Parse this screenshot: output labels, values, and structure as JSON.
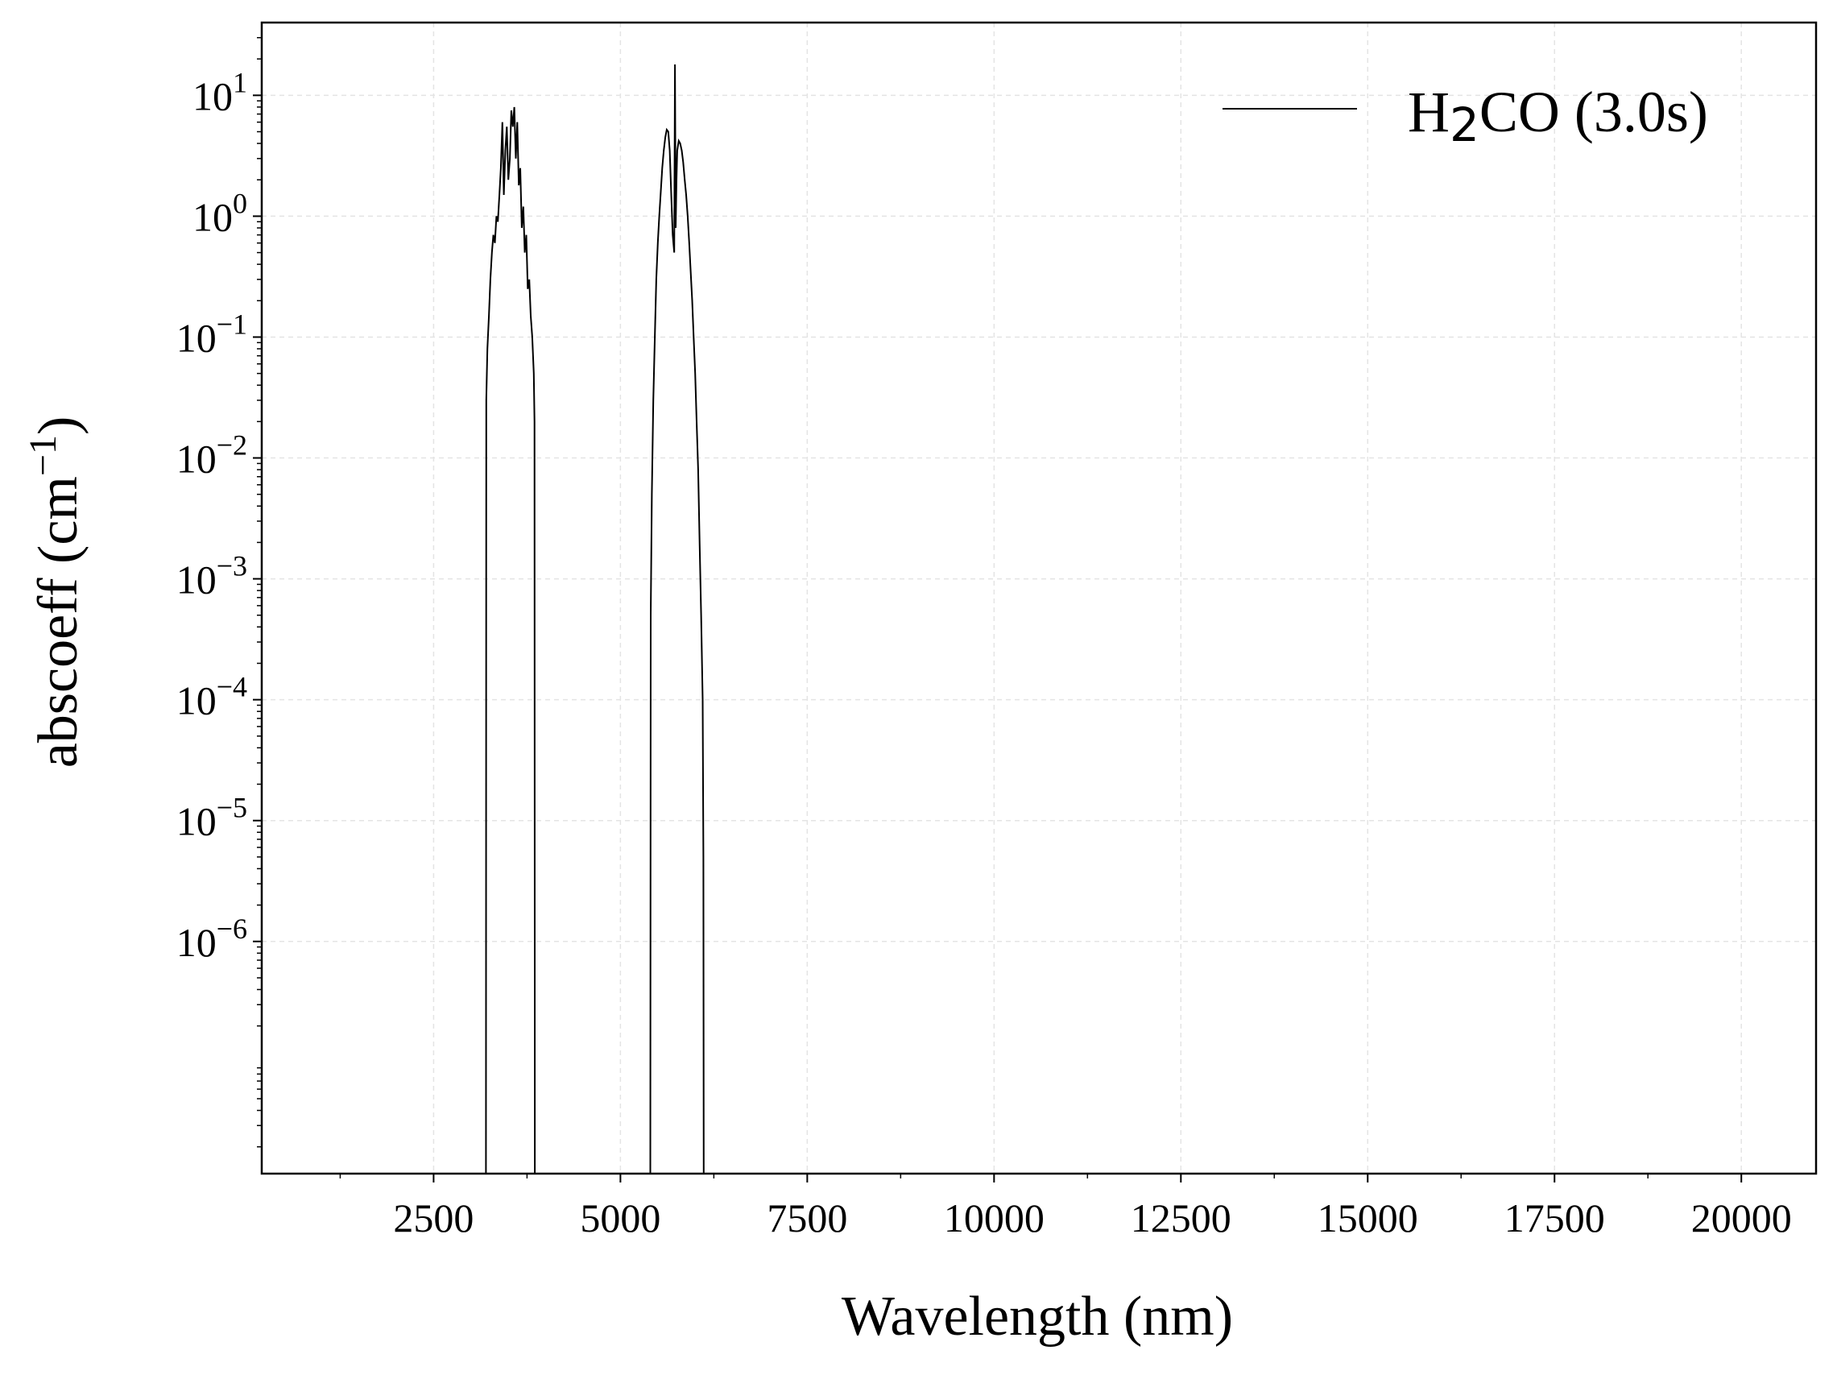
{
  "chart_data": {
    "type": "line",
    "title": "",
    "xlabel": "Wavelength (nm)",
    "ylabel": "abscoeff (cm",
    "ylabel_sup": "−1",
    "ylabel_close": ")",
    "xscale": "linear",
    "yscale": "log",
    "xlim": [
      200,
      21000
    ],
    "ylim": [
      1.2e-08,
      40
    ],
    "grid": true,
    "legend_position": "upper-right",
    "x_ticks": [
      2500,
      5000,
      7500,
      10000,
      12500,
      15000,
      17500,
      20000
    ],
    "x_tick_labels": [
      "2500",
      "5000",
      "7500",
      "10000",
      "12500",
      "15000",
      "17500",
      "20000"
    ],
    "y_ticks": [
      1e-06,
      1e-05,
      0.0001,
      0.001,
      0.01,
      0.1,
      1,
      10
    ],
    "y_tick_labels": [
      {
        "base": "10",
        "exp": "−6"
      },
      {
        "base": "10",
        "exp": "−5"
      },
      {
        "base": "10",
        "exp": "−4"
      },
      {
        "base": "10",
        "exp": "−3"
      },
      {
        "base": "10",
        "exp": "−2"
      },
      {
        "base": "10",
        "exp": "−1"
      },
      {
        "base": "10",
        "exp": "0"
      },
      {
        "base": "10",
        "exp": "1"
      }
    ],
    "series": [
      {
        "name": "H2CO (3.0s)",
        "name_parts": {
          "pre": "H",
          "sub": "2",
          "post": "CO (3.0s)"
        },
        "color": "#000000",
        "bands": [
          {
            "x": [
              3200,
              3205,
              3220,
              3240,
              3260,
              3280,
              3300,
              3320,
              3340,
              3360,
              3380,
              3400,
              3420,
              3440,
              3460,
              3480,
              3500,
              3520,
              3540,
              3560,
              3580,
              3600,
              3620,
              3640,
              3660,
              3680,
              3700,
              3720,
              3740,
              3760,
              3780,
              3800,
              3820,
              3840,
              3850,
              3855
            ],
            "y": [
              1.2e-08,
              0.03,
              0.08,
              0.15,
              0.3,
              0.5,
              0.7,
              0.6,
              1.0,
              0.9,
              1.5,
              2.5,
              6.0,
              1.5,
              3.5,
              5.5,
              2.0,
              3.0,
              7.5,
              5.5,
              8.0,
              3.0,
              6.0,
              1.8,
              2.5,
              0.8,
              1.2,
              0.5,
              0.7,
              0.25,
              0.3,
              0.15,
              0.1,
              0.05,
              0.02,
              1.2e-08
            ]
          },
          {
            "x": [
              5400,
              5405,
              5420,
              5440,
              5460,
              5480,
              5500,
              5520,
              5540,
              5560,
              5580,
              5600,
              5620,
              5640,
              5660,
              5680,
              5700,
              5720,
              5730,
              5740,
              5750,
              5760,
              5780,
              5800,
              5820,
              5840,
              5860,
              5880,
              5900,
              5920,
              5940,
              5960,
              5980,
              6000,
              6020,
              6040,
              6060,
              6080,
              6100,
              6110,
              6115
            ],
            "y": [
              1.2e-08,
              0.0005,
              0.005,
              0.03,
              0.1,
              0.3,
              0.6,
              1.0,
              1.6,
              2.5,
              3.5,
              4.5,
              5.2,
              5.0,
              3.5,
              1.5,
              0.7,
              0.5,
              18,
              0.8,
              2.0,
              3.5,
              4.2,
              4.0,
              3.5,
              2.8,
              2.0,
              1.5,
              1.0,
              0.6,
              0.35,
              0.2,
              0.1,
              0.05,
              0.02,
              0.008,
              0.002,
              0.0005,
              0.0001,
              5e-06,
              1.2e-08
            ]
          }
        ]
      }
    ]
  }
}
